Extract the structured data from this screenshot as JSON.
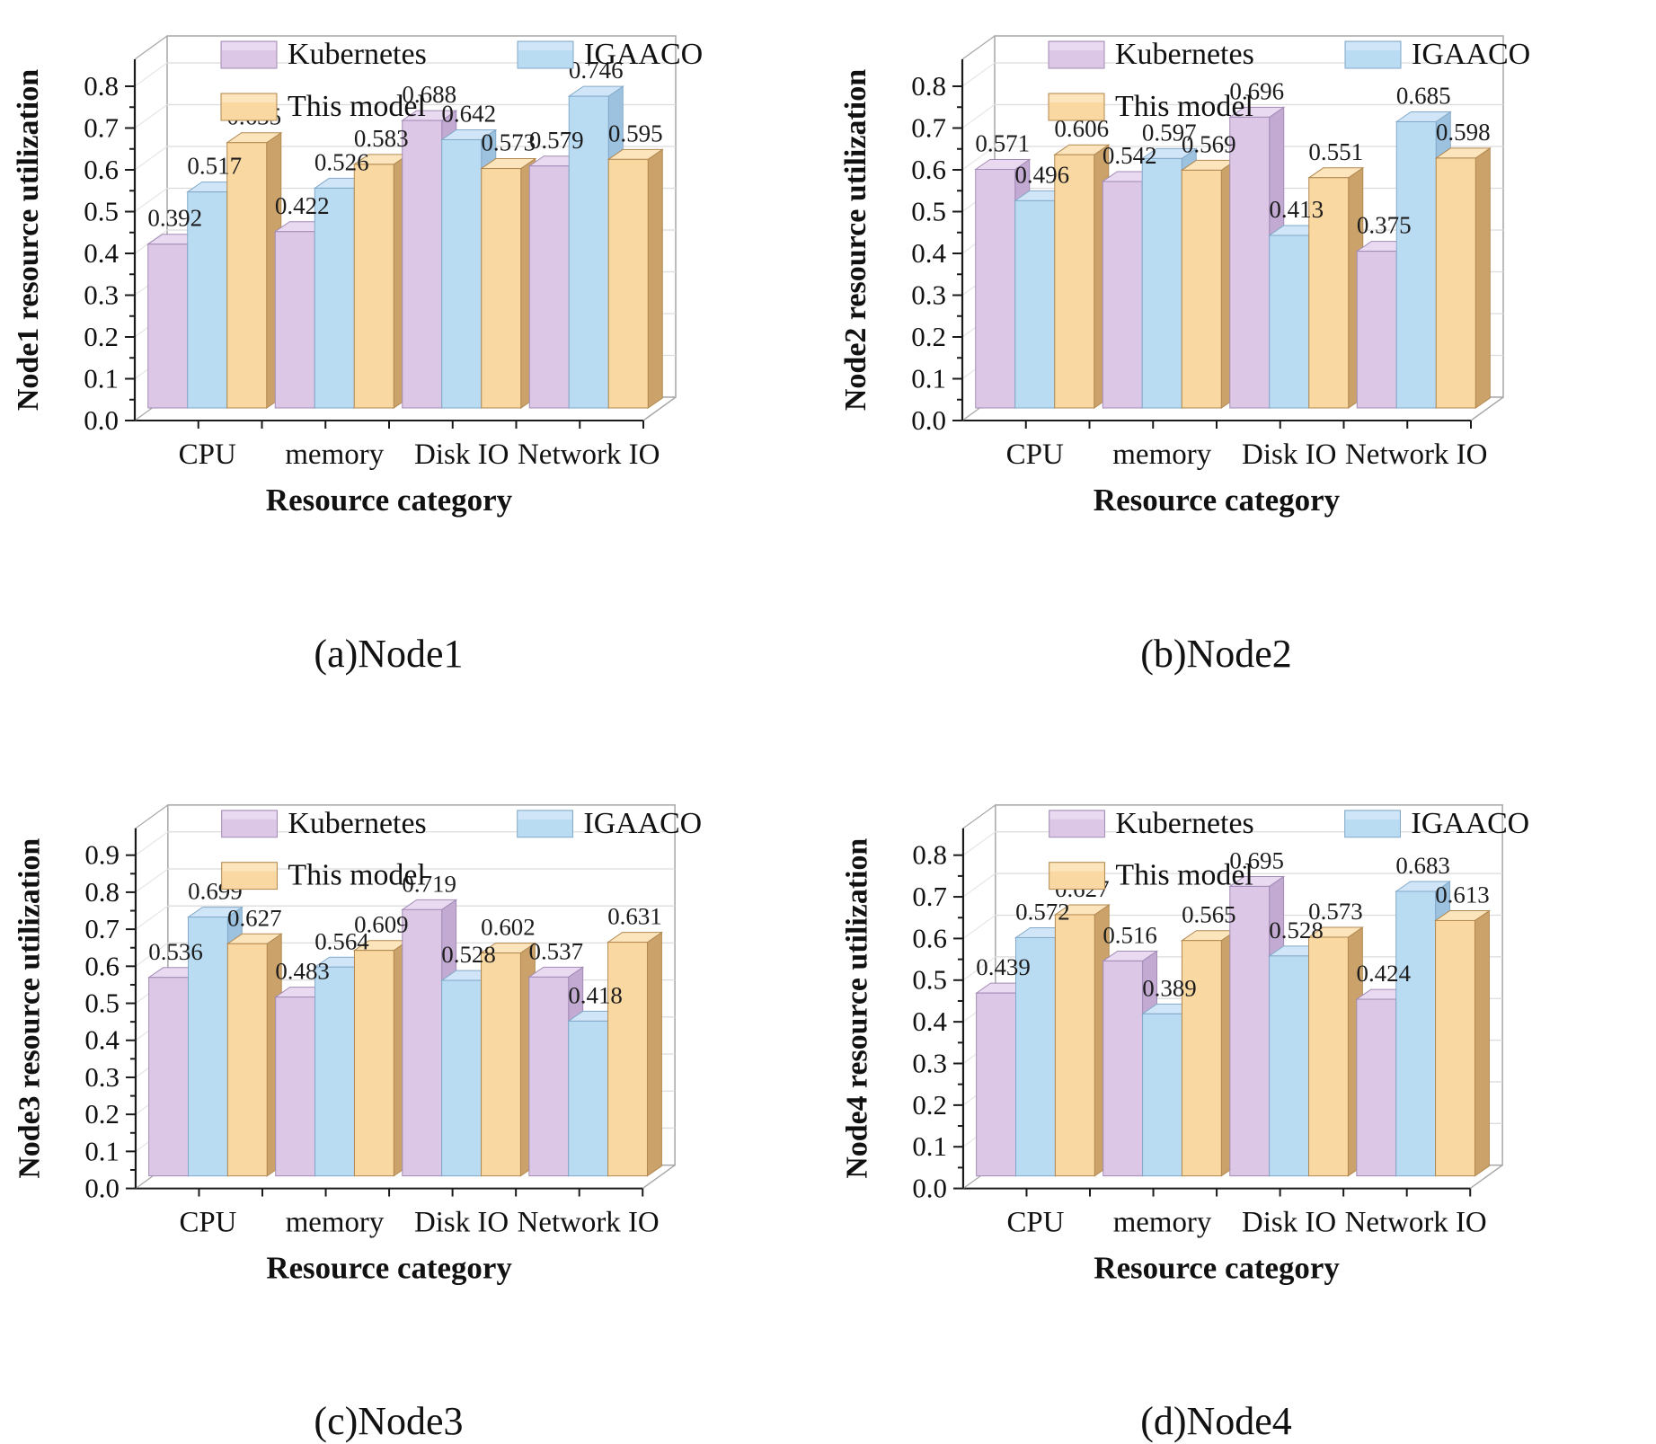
{
  "figure": {
    "background": "#ffffff",
    "text_color": "#111111",
    "grid_color": "#dcdcdc",
    "frame_color": "#a6a6a6"
  },
  "legend": {
    "items": [
      "Kubernetes",
      "IGAACO",
      "This model"
    ],
    "position": "top-left-inside"
  },
  "series_colors": {
    "Kubernetes": {
      "front": "#dcc8e6",
      "top": "#e9daf1",
      "side": "#c2aad2",
      "edge": "#a28bb5"
    },
    "IGAACO": {
      "front": "#badcf3",
      "top": "#d0e6f8",
      "side": "#9cc2e0",
      "edge": "#82a9c9"
    },
    "This model": {
      "front": "#fad8a1",
      "top": "#fce4bd",
      "side": "#caa26a",
      "edge": "#b28950"
    }
  },
  "chart_data": [
    {
      "type": "bar",
      "projection": "3d",
      "caption": "(a)Node1",
      "xlabel": "Resource category",
      "ylabel": "Node1 resource utilization",
      "ylim": [
        0.0,
        0.8
      ],
      "ytick_step": 0.1,
      "grid": true,
      "legend_position": "top-left-inside",
      "categories": [
        "CPU",
        "memory",
        "Disk IO",
        "Network IO"
      ],
      "series": [
        {
          "name": "Kubernetes",
          "values": [
            0.392,
            0.422,
            0.688,
            0.579
          ]
        },
        {
          "name": "IGAACO",
          "values": [
            0.517,
            0.526,
            0.642,
            0.746
          ]
        },
        {
          "name": "This model",
          "values": [
            0.635,
            0.583,
            0.573,
            0.595
          ]
        }
      ]
    },
    {
      "type": "bar",
      "projection": "3d",
      "caption": "(b)Node2",
      "xlabel": "Resource category",
      "ylabel": "Node2 resource utilization",
      "ylim": [
        0.0,
        0.8
      ],
      "ytick_step": 0.1,
      "grid": true,
      "legend_position": "top-left-inside",
      "categories": [
        "CPU",
        "memory",
        "Disk IO",
        "Network IO"
      ],
      "series": [
        {
          "name": "Kubernetes",
          "values": [
            0.571,
            0.542,
            0.696,
            0.375
          ]
        },
        {
          "name": "IGAACO",
          "values": [
            0.496,
            0.597,
            0.413,
            0.685
          ]
        },
        {
          "name": "This model",
          "values": [
            0.606,
            0.569,
            0.551,
            0.598
          ]
        }
      ]
    },
    {
      "type": "bar",
      "projection": "3d",
      "caption": "(c)Node3",
      "xlabel": "Resource category",
      "ylabel": "Node3 resource utilization",
      "ylim": [
        0.0,
        0.9
      ],
      "ytick_step": 0.1,
      "grid": true,
      "legend_position": "top-left-inside",
      "categories": [
        "CPU",
        "memory",
        "Disk IO",
        "Network IO"
      ],
      "series": [
        {
          "name": "Kubernetes",
          "values": [
            0.536,
            0.483,
            0.719,
            0.537
          ]
        },
        {
          "name": "IGAACO",
          "values": [
            0.699,
            0.564,
            0.528,
            0.418
          ]
        },
        {
          "name": "This model",
          "values": [
            0.627,
            0.609,
            0.602,
            0.631
          ]
        }
      ]
    },
    {
      "type": "bar",
      "projection": "3d",
      "caption": "(d)Node4",
      "xlabel": "Resource category",
      "ylabel": "Node4 resource utilization",
      "ylim": [
        0.0,
        0.8
      ],
      "ytick_step": 0.1,
      "grid": true,
      "legend_position": "top-left-inside",
      "categories": [
        "CPU",
        "memory",
        "Disk IO",
        "Network IO"
      ],
      "series": [
        {
          "name": "Kubernetes",
          "values": [
            0.439,
            0.516,
            0.695,
            0.424
          ]
        },
        {
          "name": "IGAACO",
          "values": [
            0.572,
            0.389,
            0.528,
            0.683
          ]
        },
        {
          "name": "This model",
          "values": [
            0.627,
            0.565,
            0.573,
            0.613
          ]
        }
      ]
    }
  ]
}
